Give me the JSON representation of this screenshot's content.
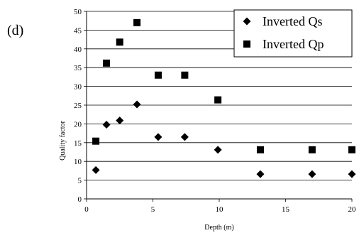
{
  "chart_data": {
    "type": "scatter",
    "panel_label": "(d)",
    "title": "",
    "xlabel": "Depth (m)",
    "ylabel": "Quality factor",
    "xlim": [
      0,
      20
    ],
    "ylim": [
      0,
      50
    ],
    "x_ticks": [
      0,
      5,
      10,
      15,
      20
    ],
    "y_ticks": [
      0,
      5,
      10,
      15,
      20,
      25,
      30,
      35,
      40,
      45,
      50
    ],
    "grid": "horizontal",
    "legend_position": "top-right",
    "series": [
      {
        "name": "Inverted Qs",
        "marker": "diamond",
        "color": "#000000",
        "x": [
          0.7,
          1.5,
          2.5,
          3.8,
          5.4,
          7.4,
          9.9,
          13.1,
          17.0,
          20.0
        ],
        "y": [
          7.7,
          19.8,
          20.9,
          25.2,
          16.5,
          16.5,
          13.1,
          6.6,
          6.6,
          6.6
        ]
      },
      {
        "name": "Inverted Qp",
        "marker": "square",
        "color": "#000000",
        "x": [
          0.7,
          1.5,
          2.5,
          3.8,
          5.4,
          7.4,
          9.9,
          13.1,
          17.0,
          20.0
        ],
        "y": [
          15.4,
          36.2,
          41.8,
          47.0,
          33.0,
          33.0,
          26.4,
          13.1,
          13.1,
          13.1
        ]
      }
    ]
  }
}
